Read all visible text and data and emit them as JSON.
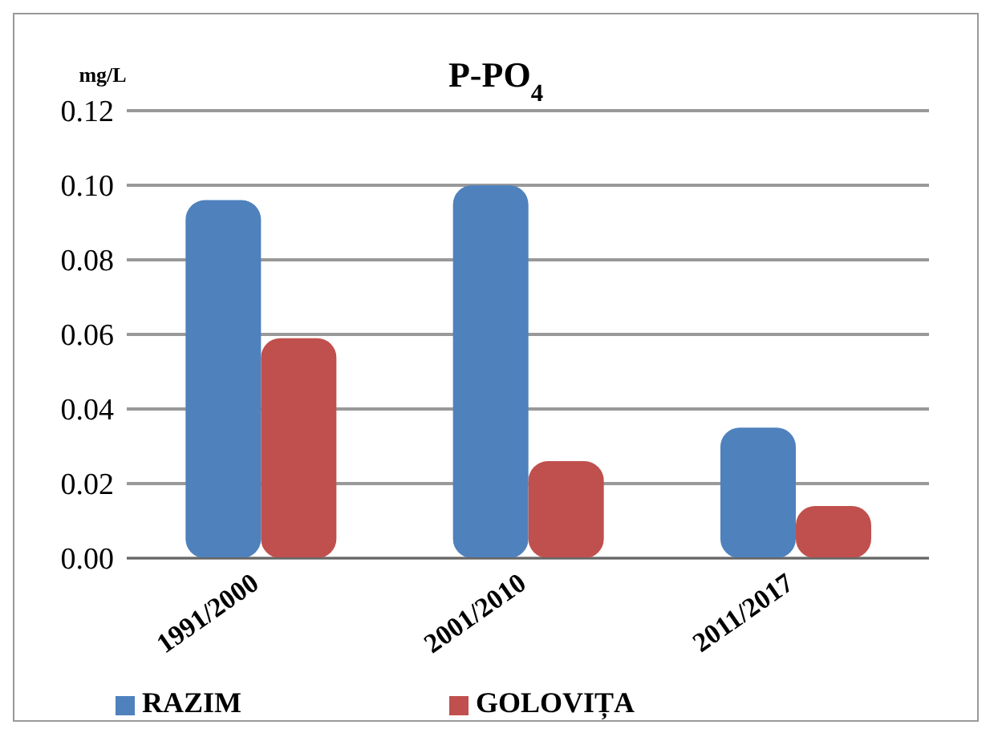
{
  "chart_data": {
    "type": "bar",
    "title": "P-PO$_{4}$",
    "ylabel": "mg/L",
    "categories": [
      "1991/2000",
      "2001/2010",
      "2011/2017"
    ],
    "series": [
      {
        "name": "RAZIM",
        "color": "#4f81bd",
        "values": [
          0.096,
          0.1,
          0.035
        ]
      },
      {
        "name": "GOLOVIȚA",
        "color": "#c0504d",
        "values": [
          0.059,
          0.026,
          0.014
        ]
      }
    ],
    "ylim": [
      0,
      0.12
    ],
    "yticks": [
      {
        "value": 0,
        "label": "0.00"
      },
      {
        "value": 0.02,
        "label": "0.02"
      },
      {
        "value": 0.04,
        "label": "0.04"
      },
      {
        "value": 0.06,
        "label": "0.06"
      },
      {
        "value": 0.08,
        "label": "0.08"
      },
      {
        "value": 0.1,
        "label": "0.10"
      },
      {
        "value": 0.12,
        "label": "0.12"
      }
    ],
    "grid": "y",
    "legend": "bottom"
  }
}
